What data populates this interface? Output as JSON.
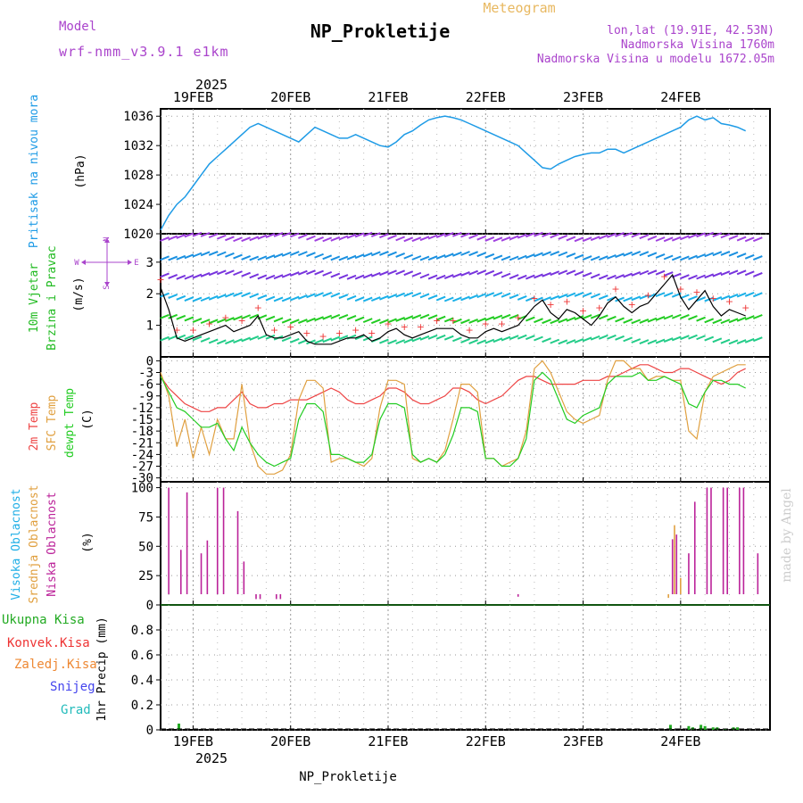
{
  "header": {
    "meteogram_label": "Meteogram",
    "title": "NP_Prokletije",
    "model_label": "Model",
    "model_name": "wrf-nmm_v3.9.1 e1km",
    "coords": "lon,lat (19.91E, 42.53N)",
    "altitude": "Nadmorska Visina 1760m",
    "model_altitude": "Nadmorska Visina u modelu 1672.05m",
    "footer_title": "NP_Prokletije",
    "watermark": "made by Angel",
    "year": "2025"
  },
  "colors": {
    "pressure": "#1e9be6",
    "temp2m": "#ee4444",
    "sfc_temp": "#e0a040",
    "dewpt": "#22cc22",
    "high_cloud": "#1eaee6",
    "mid_cloud": "#e0a040",
    "low_cloud": "#bb2299",
    "wind_label": "#22bb22",
    "purple": "#aa44cc",
    "precip_total": "#22aa22",
    "precip_conv": "#ee3333",
    "precip_frozen": "#ee8833",
    "precip_snow": "#4444ee",
    "precip_hail": "#22bbbb"
  },
  "chart_data": [
    {
      "type": "line",
      "panel": "pressure",
      "ylabel": "Pritisak na nivou mora",
      "yunit": "(hPa)",
      "ylim": [
        1020,
        1037
      ],
      "yticks": [
        1020,
        1024,
        1028,
        1032,
        1036
      ],
      "grid": true,
      "x_day_labels": [
        "19FEB",
        "20FEB",
        "21FEB",
        "22FEB",
        "23FEB",
        "24FEB"
      ],
      "x_hours_since_start": [
        0,
        2,
        4,
        6,
        8,
        10,
        12,
        14,
        16,
        18,
        20,
        22,
        24,
        26,
        28,
        30,
        32,
        34,
        36,
        38,
        40,
        42,
        44,
        46,
        48,
        50,
        52,
        54,
        56,
        58,
        60,
        62,
        64,
        66,
        68,
        70,
        72,
        74,
        76,
        78,
        80,
        82,
        84,
        86,
        88,
        90,
        92,
        94,
        96,
        98,
        100,
        102,
        104,
        106,
        108,
        110,
        112,
        114,
        116,
        118,
        120,
        122,
        124,
        126,
        128,
        130,
        132,
        134,
        136,
        138,
        140,
        142,
        144
      ],
      "series": [
        {
          "values": [
            1020.5,
            1022.5,
            1024.0,
            1025.0,
            1026.5,
            1028.0,
            1029.5,
            1030.5,
            1031.5,
            1032.5,
            1033.5,
            1034.5,
            1035.0,
            1034.5,
            1034.0,
            1033.5,
            1033.0,
            1032.5,
            1033.5,
            1034.5,
            1034.0,
            1033.5,
            1033.0,
            1033.0,
            1033.5,
            1033.0,
            1032.5,
            1032.0,
            1031.8,
            1032.5,
            1033.5,
            1034.0,
            1034.8,
            1035.5,
            1035.8,
            1036.0,
            1035.8,
            1035.5,
            1035.0,
            1034.5,
            1034.0,
            1033.5,
            1033.0,
            1032.5,
            1032.0,
            1031.0,
            1030.0,
            1029.0,
            1028.8,
            1029.5,
            1030.0,
            1030.5,
            1030.8,
            1031.0,
            1031.0,
            1031.5,
            1031.5,
            1031.0,
            1031.5,
            1032.0,
            1032.5,
            1033.0,
            1033.5,
            1034.0,
            1034.5,
            1035.5,
            1036.0,
            1035.5,
            1035.8,
            1035.0,
            1034.8,
            1034.5,
            1034.0
          ]
        }
      ]
    },
    {
      "type": "line",
      "panel": "wind",
      "ylabel": "10m Vjetar",
      "ylabel2": "Brzina i Pravac",
      "yunit": "(m/s)",
      "ylim": [
        0,
        3.9
      ],
      "yticks": [
        1,
        2,
        3
      ],
      "direction_legend": [
        "N",
        "S",
        "W",
        "E"
      ],
      "grid": true,
      "x_hours_since_start": [
        0,
        2,
        4,
        6,
        8,
        10,
        12,
        14,
        16,
        18,
        20,
        22,
        24,
        26,
        28,
        30,
        32,
        34,
        36,
        38,
        40,
        42,
        44,
        46,
        48,
        50,
        52,
        54,
        56,
        58,
        60,
        62,
        64,
        66,
        68,
        70,
        72,
        74,
        76,
        78,
        80,
        82,
        84,
        86,
        88,
        90,
        92,
        94,
        96,
        98,
        100,
        102,
        104,
        106,
        108,
        110,
        112,
        114,
        116,
        118,
        120,
        122,
        124,
        126,
        128,
        130,
        132,
        134,
        136,
        138,
        140,
        142,
        144
      ],
      "series": [
        {
          "name": "wind",
          "values": [
            2.2,
            1.5,
            0.6,
            0.5,
            0.6,
            0.7,
            0.8,
            0.9,
            1.0,
            0.8,
            0.9,
            1.0,
            1.3,
            0.7,
            0.6,
            0.6,
            0.7,
            0.8,
            0.5,
            0.4,
            0.4,
            0.4,
            0.5,
            0.6,
            0.6,
            0.7,
            0.5,
            0.6,
            0.8,
            0.9,
            0.7,
            0.6,
            0.7,
            0.8,
            0.9,
            0.9,
            0.9,
            0.7,
            0.6,
            0.6,
            0.8,
            0.9,
            0.8,
            0.9,
            1.0,
            1.3,
            1.6,
            1.8,
            1.4,
            1.2,
            1.5,
            1.4,
            1.2,
            1.0,
            1.3,
            1.7,
            1.9,
            1.6,
            1.4,
            1.6,
            1.7,
            2.0,
            2.3,
            2.6,
            1.9,
            1.5,
            1.8,
            2.1,
            1.6,
            1.3,
            1.5,
            1.4,
            1.3
          ]
        }
      ]
    },
    {
      "type": "line",
      "panel": "temperature",
      "ylabels": [
        "2m Temp",
        "SFC Temp",
        "dewpt Temp"
      ],
      "yunit": "(C)",
      "ylim": [
        -31,
        1
      ],
      "yticks": [
        0,
        -3,
        -6,
        -9,
        -12,
        -15,
        -18,
        -21,
        -24,
        -27,
        -30
      ],
      "grid": true,
      "x_hours_since_start": [
        0,
        2,
        4,
        6,
        8,
        10,
        12,
        14,
        16,
        18,
        20,
        22,
        24,
        26,
        28,
        30,
        32,
        34,
        36,
        38,
        40,
        42,
        44,
        46,
        48,
        50,
        52,
        54,
        56,
        58,
        60,
        62,
        64,
        66,
        68,
        70,
        72,
        74,
        76,
        78,
        80,
        82,
        84,
        86,
        88,
        90,
        92,
        94,
        96,
        98,
        100,
        102,
        104,
        106,
        108,
        110,
        112,
        114,
        116,
        118,
        120,
        122,
        124,
        126,
        128,
        130,
        132,
        134,
        136,
        138,
        140,
        142,
        144
      ],
      "series": [
        {
          "name": "2m Temp",
          "values": [
            -4,
            -7,
            -9,
            -11,
            -12,
            -13,
            -13,
            -12,
            -12,
            -10,
            -8,
            -11,
            -12,
            -12,
            -11,
            -11,
            -10,
            -10,
            -10,
            -9,
            -8,
            -7,
            -8,
            -10,
            -11,
            -11,
            -10,
            -9,
            -7,
            -7,
            -8,
            -10,
            -11,
            -11,
            -10,
            -9,
            -7,
            -7,
            -8,
            -10,
            -11,
            -10,
            -9,
            -7,
            -5,
            -4,
            -4,
            -5,
            -6,
            -6,
            -6,
            -6,
            -5,
            -5,
            -5,
            -4,
            -4,
            -3,
            -2,
            -1,
            -1,
            -2,
            -3,
            -3,
            -2,
            -2,
            -3,
            -4,
            -5,
            -6,
            -5,
            -3,
            -2
          ]
        },
        {
          "name": "SFC Temp",
          "values": [
            -3,
            -9,
            -22,
            -15,
            -25,
            -17,
            -24,
            -15,
            -20,
            -20,
            -6,
            -21,
            -27,
            -29,
            -29,
            -28,
            -24,
            -10,
            -5,
            -5,
            -7,
            -26,
            -25,
            -25,
            -26,
            -27,
            -25,
            -12,
            -5,
            -5,
            -6,
            -25,
            -26,
            -25,
            -26,
            -23,
            -15,
            -6,
            -6,
            -8,
            -25,
            -25,
            -27,
            -26,
            -25,
            -18,
            -2,
            0,
            -3,
            -8,
            -13,
            -15,
            -16,
            -15,
            -14,
            -5,
            0,
            0,
            -2,
            -2,
            -5,
            -4,
            -4,
            -5,
            -5,
            -18,
            -20,
            -8,
            -4,
            -3,
            -2,
            -1,
            -1
          ]
        },
        {
          "name": "dewpt Temp",
          "values": [
            -4,
            -8,
            -12,
            -13,
            -15,
            -17,
            -17,
            -16,
            -20,
            -23,
            -17,
            -21,
            -24,
            -26,
            -27,
            -26,
            -25,
            -15,
            -11,
            -11,
            -13,
            -24,
            -24,
            -25,
            -26,
            -26,
            -24,
            -15,
            -11,
            -11,
            -12,
            -24,
            -26,
            -25,
            -26,
            -24,
            -19,
            -12,
            -12,
            -13,
            -25,
            -25,
            -27,
            -27,
            -25,
            -20,
            -5,
            -3,
            -5,
            -10,
            -15,
            -16,
            -14,
            -13,
            -12,
            -6,
            -4,
            -4,
            -4,
            -3,
            -5,
            -5,
            -4,
            -5,
            -6,
            -11,
            -12,
            -8,
            -5,
            -5,
            -6,
            -6,
            -7
          ]
        }
      ]
    },
    {
      "type": "bar",
      "panel": "cloud",
      "ylabels": [
        "Visoka Oblacnost",
        "Srednja Oblacnost",
        "Niska Oblacnost"
      ],
      "yunit": "(%)",
      "ylim": [
        0,
        105
      ],
      "yticks": [
        0,
        25,
        50,
        75,
        100
      ],
      "grid": true,
      "low_cloud_bars": [
        {
          "x": 2,
          "value": 100
        },
        {
          "x": 5,
          "value": 47
        },
        {
          "x": 6.5,
          "value": 96
        },
        {
          "x": 10,
          "value": 44
        },
        {
          "x": 11.5,
          "value": 55
        },
        {
          "x": 14,
          "value": 100
        },
        {
          "x": 15.5,
          "value": 100
        },
        {
          "x": 19,
          "value": 80
        },
        {
          "x": 20.5,
          "value": 37
        },
        {
          "x": 23.5,
          "value": 5
        },
        {
          "x": 24.5,
          "value": 5
        },
        {
          "x": 28.5,
          "value": 5
        },
        {
          "x": 29.5,
          "value": 5
        },
        {
          "x": 88,
          "value": 7
        },
        {
          "x": 126,
          "value": 56
        },
        {
          "x": 127,
          "value": 60
        },
        {
          "x": 130,
          "value": 44
        },
        {
          "x": 131.5,
          "value": 88
        },
        {
          "x": 134.5,
          "value": 100
        },
        {
          "x": 135.5,
          "value": 100
        },
        {
          "x": 138.5,
          "value": 100
        },
        {
          "x": 139.5,
          "value": 100
        },
        {
          "x": 142.5,
          "value": 100
        },
        {
          "x": 143.5,
          "value": 100
        },
        {
          "x": 147,
          "value": 44
        }
      ],
      "mid_cloud_bars": [
        {
          "x": 126.5,
          "value": 68
        },
        {
          "x": 128,
          "value": 23
        },
        {
          "x": 125,
          "value": 6
        }
      ]
    },
    {
      "type": "bar",
      "panel": "precip",
      "ylabels": [
        "Ukupna Kisa",
        "Konvek.Kisa",
        "Zaledj.Kisa",
        "Snijeg",
        "Grad"
      ],
      "yunit": "1hr Precip (mm)",
      "ylim": [
        0,
        1.0
      ],
      "yticks": [
        0,
        0.2,
        0.4,
        0.6,
        0.8
      ],
      "grid": true,
      "total_bars": [
        {
          "x": 4.5,
          "value": 0.05
        },
        {
          "x": 125.5,
          "value": 0.04
        },
        {
          "x": 130,
          "value": 0.03
        },
        {
          "x": 131,
          "value": 0.02
        },
        {
          "x": 133,
          "value": 0.04
        },
        {
          "x": 134,
          "value": 0.03
        },
        {
          "x": 136,
          "value": 0.02
        },
        {
          "x": 137,
          "value": 0.02
        },
        {
          "x": 139,
          "value": 0.01
        },
        {
          "x": 141,
          "value": 0.02
        },
        {
          "x": 142,
          "value": 0.02
        }
      ]
    }
  ]
}
